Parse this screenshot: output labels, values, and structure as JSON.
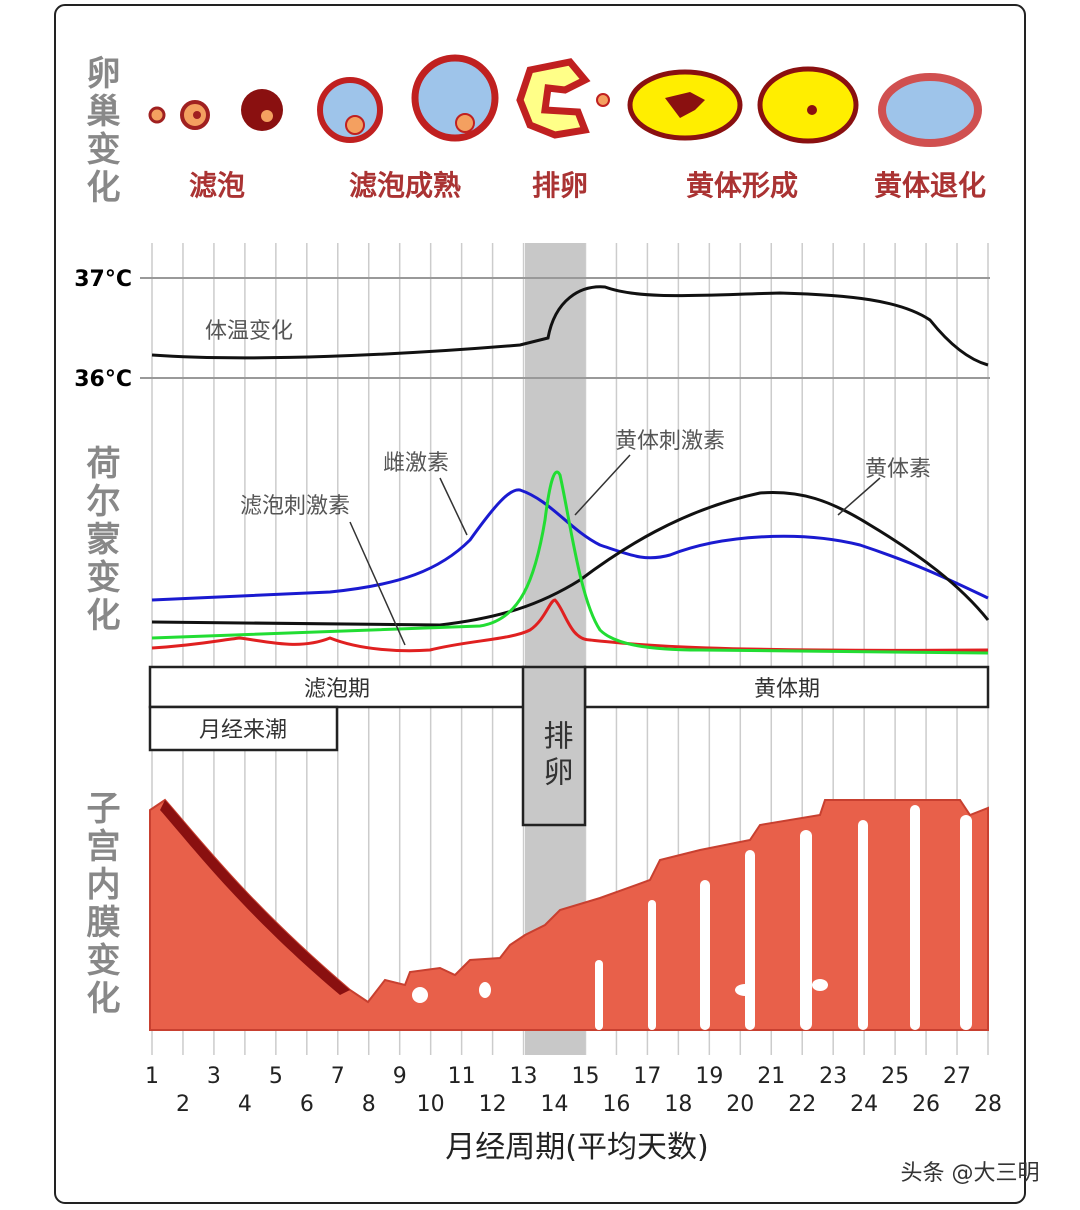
{
  "ovary": {
    "label": "卵巢变化",
    "stages": [
      "滤泡",
      "滤泡成熟",
      "排卵",
      "黄体形成",
      "黄体退化"
    ]
  },
  "temperature": {
    "label": "体温变化",
    "ticks": [
      "37°C",
      "36°C"
    ]
  },
  "hormones": {
    "label": "荷尔蒙变化",
    "curves": [
      "雌激素",
      "黄体刺激素",
      "滤泡刺激素",
      "黄体素"
    ]
  },
  "phases": {
    "follicular": "滤泡期",
    "luteal": "黄体期",
    "menstruation": "月经来潮",
    "ovulation": "排卵"
  },
  "endometrium": {
    "label": "子宫内膜变化"
  },
  "x_axis": {
    "days": [
      1,
      2,
      3,
      4,
      5,
      6,
      7,
      8,
      9,
      10,
      11,
      12,
      13,
      14,
      15,
      16,
      17,
      18,
      19,
      20,
      21,
      22,
      23,
      24,
      25,
      26,
      27,
      28
    ],
    "title": "月经周期(平均天数)"
  },
  "watermark": "头条 @大三明"
}
